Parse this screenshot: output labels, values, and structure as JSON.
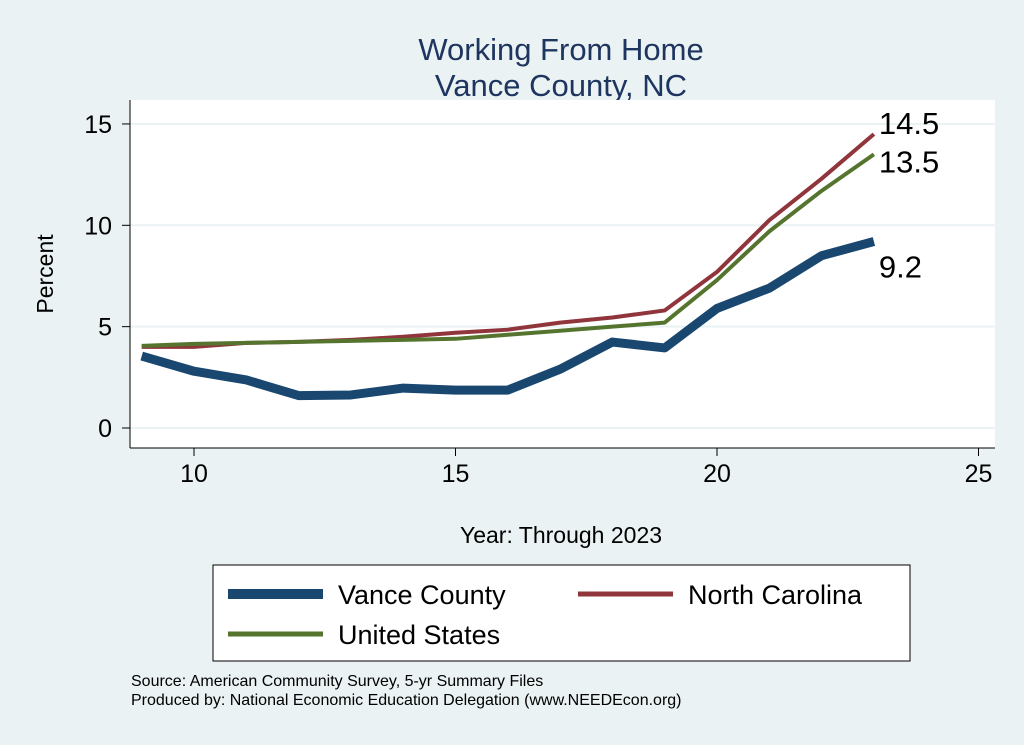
{
  "chart_data": {
    "type": "line",
    "title": "Working From Home",
    "subtitle": "Vance County, NC",
    "xlabel": "Year: Through 2023",
    "ylabel": "Percent",
    "xlim": [
      8.8,
      25.3
    ],
    "ylim": [
      -0.6,
      16.2
    ],
    "xticks": [
      10,
      15,
      20,
      25
    ],
    "yticks": [
      0,
      5,
      10,
      15
    ],
    "grid": true,
    "legend_placement": "bottom",
    "x": [
      9,
      10,
      11,
      12,
      13,
      14,
      15,
      16,
      17,
      18,
      19,
      20,
      21,
      22,
      23
    ],
    "series": [
      {
        "name": "Vance County",
        "color": "#1a476f",
        "values": [
          3.55,
          2.8,
          2.37,
          1.6,
          1.63,
          1.97,
          1.87,
          1.87,
          2.9,
          4.24,
          3.95,
          5.9,
          6.9,
          8.5,
          9.2
        ],
        "end_label": "9.2"
      },
      {
        "name": "North Carolina",
        "color": "#90353b",
        "values": [
          4.0,
          4.0,
          4.2,
          4.25,
          4.35,
          4.5,
          4.7,
          4.85,
          5.2,
          5.45,
          5.8,
          7.7,
          10.25,
          12.3,
          14.5
        ],
        "end_label": "14.5"
      },
      {
        "name": "United States",
        "color": "#55752f",
        "values": [
          4.05,
          4.15,
          4.2,
          4.25,
          4.3,
          4.35,
          4.4,
          4.6,
          4.8,
          5.0,
          5.2,
          7.3,
          9.7,
          11.7,
          13.5
        ],
        "end_label": "13.5"
      }
    ]
  },
  "notes": {
    "source": "Source: American Community Survey, 5-yr Summary Files",
    "produced": "Produced by: National Economic Education Delegation (www.NEEDEcon.org)"
  }
}
